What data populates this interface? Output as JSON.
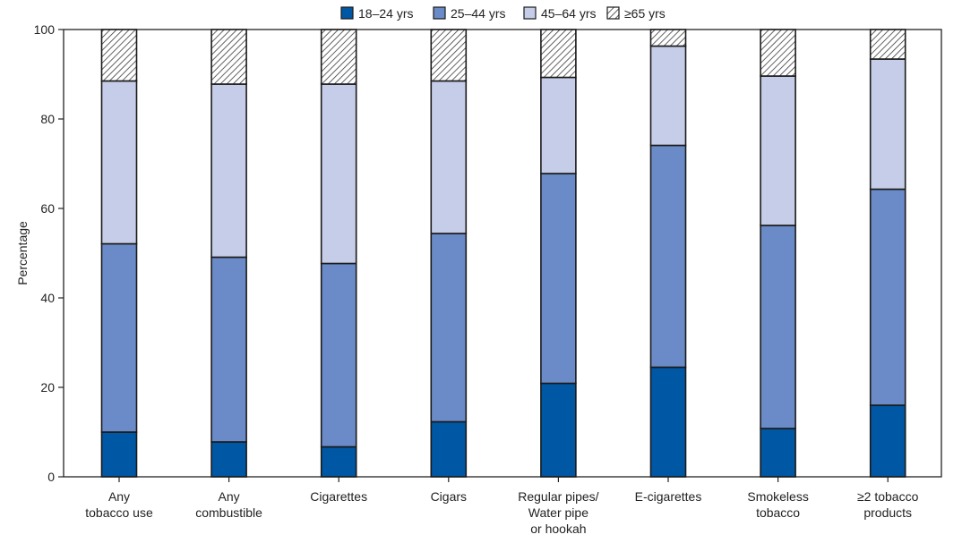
{
  "chart_data": {
    "type": "bar",
    "stacked": true,
    "title": "",
    "xlabel": "",
    "ylabel": "Percentage",
    "ylim": [
      0,
      100
    ],
    "yticks": [
      0,
      20,
      40,
      60,
      80,
      100
    ],
    "grid": false,
    "legend_position": "top-center",
    "categories": [
      [
        "Any",
        "tobacco use"
      ],
      [
        "Any",
        "combustible"
      ],
      [
        "Cigarettes"
      ],
      [
        "Cigars"
      ],
      [
        "Regular pipes/",
        "Water pipe",
        "or hookah"
      ],
      [
        "E-cigarettes"
      ],
      [
        "Smokeless",
        "tobacco"
      ],
      [
        "≥2 tobacco",
        "products"
      ]
    ],
    "series": [
      {
        "name": "18–24 yrs",
        "color": "#0057a3",
        "pattern": "solid",
        "values": [
          10.0,
          7.8,
          6.7,
          12.3,
          20.9,
          24.5,
          10.8,
          16.0
        ]
      },
      {
        "name": "25–44 yrs",
        "color": "#6a8bc7",
        "pattern": "solid",
        "values": [
          42.1,
          41.3,
          41.0,
          42.1,
          46.9,
          49.6,
          45.4,
          48.3
        ]
      },
      {
        "name": "45–64 yrs",
        "color": "#c6cde8",
        "pattern": "solid",
        "values": [
          36.4,
          38.7,
          40.1,
          34.1,
          21.5,
          22.2,
          33.4,
          29.1
        ]
      },
      {
        "name": "≥65 yrs",
        "color": "#ffffff",
        "pattern": "hatch",
        "values": [
          11.5,
          12.2,
          12.2,
          11.5,
          10.7,
          3.7,
          10.4,
          6.6
        ]
      }
    ]
  }
}
